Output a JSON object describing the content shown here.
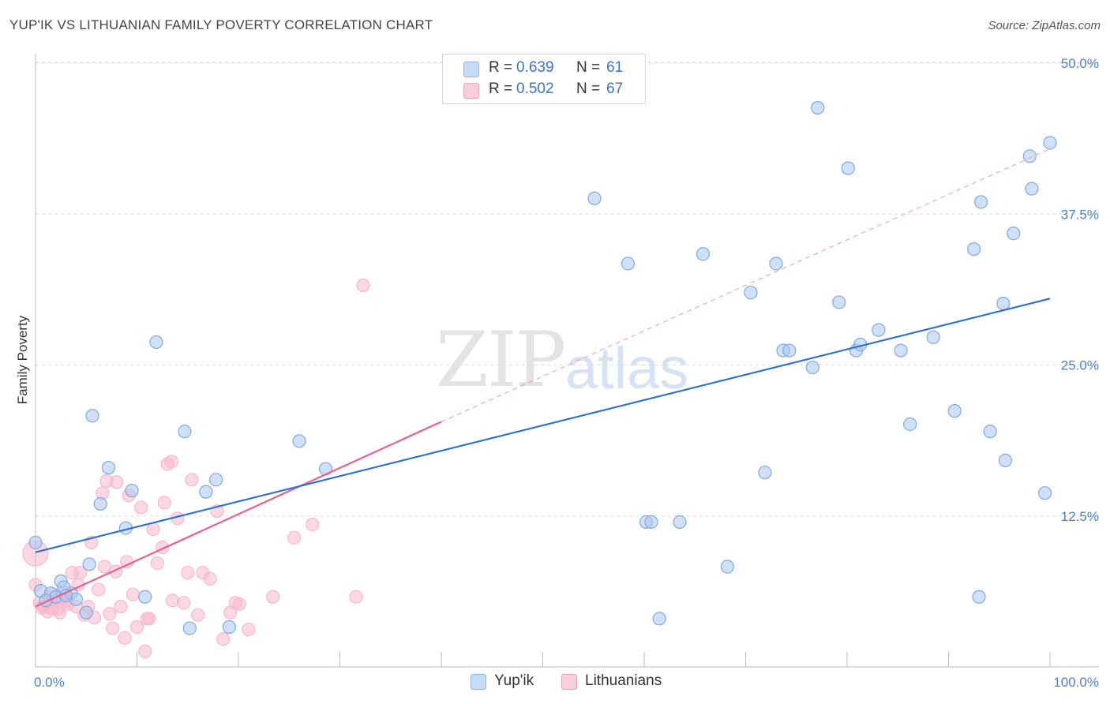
{
  "header": {
    "title": "YUP'IK VS LITHUANIAN FAMILY POVERTY CORRELATION CHART",
    "source": "Source: ZipAtlas.com"
  },
  "watermark": {
    "part1": "ZIP",
    "part2": "atlas"
  },
  "legend": {
    "rows": [
      {
        "r_label": "R = ",
        "r_value": "0.639",
        "n_label": "N = ",
        "n_value": "61",
        "color": "#aac8f0"
      },
      {
        "r_label": "R = ",
        "r_value": "0.502",
        "n_label": "N = ",
        "n_value": "67",
        "color": "#f7b8cb"
      }
    ]
  },
  "bottom_legend": [
    {
      "label": "Yup'ik",
      "color": "#aac8f0"
    },
    {
      "label": "Lithuanians",
      "color": "#f7b8cb"
    }
  ],
  "chart_data": {
    "type": "scatter",
    "title": "YUP'IK VS LITHUANIAN FAMILY POVERTY CORRELATION CHART",
    "xlabel": "",
    "ylabel": "Family Poverty",
    "xlim": [
      0,
      100
    ],
    "ylim": [
      0,
      50
    ],
    "x_tick_labels": [
      "0.0%",
      "100.0%"
    ],
    "y_ticks": [
      12.5,
      25.0,
      37.5,
      50.0
    ],
    "y_tick_labels": [
      "12.5%",
      "25.0%",
      "37.5%",
      "50.0%"
    ],
    "grid": "horizontal dashed",
    "legend_position": "top-center",
    "colors": {
      "yupik": "#4a86d8",
      "yupik_fill": "#aac8f0",
      "lith": "#e8608e",
      "lith_fill": "#f7b8cb"
    },
    "series": [
      {
        "name": "Yup'ik",
        "r": 0.639,
        "n": 61,
        "trend": {
          "x": [
            0,
            100
          ],
          "y": [
            9.5,
            30.5
          ],
          "dashed_extension": false
        },
        "points": [
          [
            0,
            10.3
          ],
          [
            0.5,
            6.3
          ],
          [
            1.5,
            6.1
          ],
          [
            2,
            5.8
          ],
          [
            2.5,
            7.1
          ],
          [
            3.5,
            6.1
          ],
          [
            4,
            5.6
          ],
          [
            5,
            4.5
          ],
          [
            5.3,
            8.5
          ],
          [
            5.6,
            20.8
          ],
          [
            6.4,
            13.5
          ],
          [
            7.2,
            16.5
          ],
          [
            8.9,
            11.5
          ],
          [
            9.5,
            14.6
          ],
          [
            10.8,
            5.8
          ],
          [
            11.9,
            26.9
          ],
          [
            14.7,
            19.5
          ],
          [
            15.2,
            3.2
          ],
          [
            16.8,
            14.5
          ],
          [
            17.8,
            15.5
          ],
          [
            19.1,
            3.3
          ],
          [
            26,
            18.7
          ],
          [
            28.6,
            16.4
          ],
          [
            55.1,
            38.8
          ],
          [
            58.4,
            33.4
          ],
          [
            60.2,
            12.0
          ],
          [
            60.7,
            12.0
          ],
          [
            61.5,
            4.0
          ],
          [
            63.5,
            12.0
          ],
          [
            65.8,
            34.2
          ],
          [
            68.2,
            8.3
          ],
          [
            70.5,
            31.0
          ],
          [
            71.9,
            16.1
          ],
          [
            73,
            33.4
          ],
          [
            73.7,
            26.2
          ],
          [
            74.3,
            26.2
          ],
          [
            76.6,
            24.8
          ],
          [
            77.1,
            46.3
          ],
          [
            79.2,
            30.2
          ],
          [
            80.1,
            41.3
          ],
          [
            80.9,
            26.2
          ],
          [
            81.3,
            26.7
          ],
          [
            83.1,
            27.9
          ],
          [
            85.3,
            26.2
          ],
          [
            86.2,
            20.1
          ],
          [
            88.5,
            27.3
          ],
          [
            90.6,
            21.2
          ],
          [
            92.5,
            34.6
          ],
          [
            93.2,
            38.5
          ],
          [
            93,
            5.8
          ],
          [
            94.1,
            19.5
          ],
          [
            95.4,
            30.1
          ],
          [
            95.6,
            17.1
          ],
          [
            96.4,
            35.9
          ],
          [
            98,
            42.3
          ],
          [
            98.2,
            39.6
          ],
          [
            99.5,
            14.4
          ],
          [
            100,
            43.4
          ],
          [
            2.8,
            6.6
          ],
          [
            1,
            5.5
          ],
          [
            3,
            5.9
          ]
        ]
      },
      {
        "name": "Lithuanians",
        "r": 0.502,
        "n": 67,
        "trend": {
          "x": [
            0,
            40
          ],
          "y": [
            5.0,
            20.3
          ],
          "dashed_extension_to": [
            100,
            42.9
          ]
        },
        "points": [
          [
            0,
            9.4
          ],
          [
            0,
            6.8
          ],
          [
            0.4,
            5.3
          ],
          [
            0.8,
            5.0
          ],
          [
            1.2,
            4.6
          ],
          [
            1.6,
            4.8
          ],
          [
            2,
            5.6
          ],
          [
            2.4,
            4.5
          ],
          [
            2.8,
            6.2
          ],
          [
            3.2,
            5.2
          ],
          [
            3.6,
            7.8
          ],
          [
            4,
            5.0
          ],
          [
            4.4,
            7.8
          ],
          [
            4.8,
            4.3
          ],
          [
            5.2,
            5.0
          ],
          [
            5.5,
            10.3
          ],
          [
            5.8,
            4.1
          ],
          [
            6.2,
            6.4
          ],
          [
            6.6,
            14.4
          ],
          [
            7,
            15.4
          ],
          [
            7.3,
            4.4
          ],
          [
            7.6,
            3.2
          ],
          [
            8,
            15.3
          ],
          [
            8.4,
            5.0
          ],
          [
            8.8,
            2.4
          ],
          [
            9.2,
            14.2
          ],
          [
            9.6,
            6.0
          ],
          [
            10,
            3.3
          ],
          [
            10.4,
            13.2
          ],
          [
            10.8,
            1.3
          ],
          [
            11.2,
            4.0
          ],
          [
            11.6,
            11.4
          ],
          [
            12,
            8.6
          ],
          [
            12.5,
            9.9
          ],
          [
            13,
            16.8
          ],
          [
            13.5,
            5.5
          ],
          [
            14,
            12.3
          ],
          [
            14.6,
            5.3
          ],
          [
            15,
            7.8
          ],
          [
            15.4,
            15.5
          ],
          [
            16,
            4.3
          ],
          [
            16.5,
            7.8
          ],
          [
            17.2,
            7.3
          ],
          [
            17.9,
            12.9
          ],
          [
            18.5,
            2.3
          ],
          [
            19.2,
            4.5
          ],
          [
            19.7,
            5.3
          ],
          [
            20.1,
            5.2
          ],
          [
            21,
            3.1
          ],
          [
            23.4,
            5.8
          ],
          [
            25.5,
            10.7
          ],
          [
            27.3,
            11.8
          ],
          [
            31.6,
            5.8
          ],
          [
            32.3,
            31.6
          ],
          [
            12.7,
            13.6
          ],
          [
            13.4,
            17.0
          ],
          [
            9.0,
            8.7
          ],
          [
            6.8,
            8.3
          ],
          [
            4.2,
            6.8
          ],
          [
            3.0,
            5.5
          ],
          [
            2.2,
            4.8
          ],
          [
            1.4,
            5.4
          ],
          [
            0.6,
            4.9
          ],
          [
            1.8,
            6.0
          ],
          [
            2.6,
            5.7
          ],
          [
            7.9,
            7.9
          ],
          [
            11.0,
            4.0
          ]
        ]
      }
    ]
  }
}
